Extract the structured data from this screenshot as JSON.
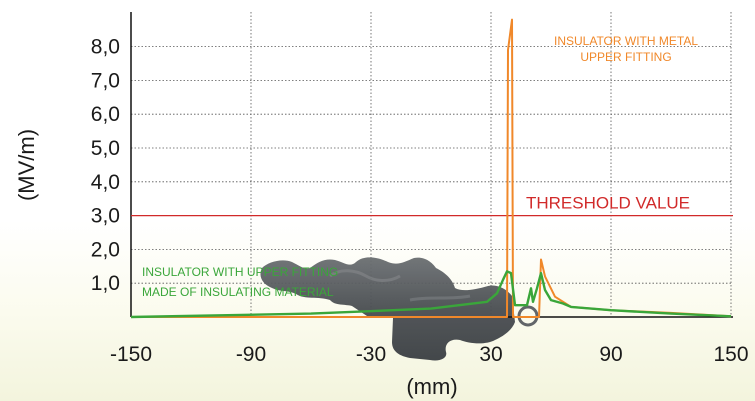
{
  "chart_data": {
    "type": "line",
    "xlabel": "(mm)",
    "ylabel": "(MV/m)",
    "xlim": [
      -150,
      150
    ],
    "ylim": [
      0,
      8.8
    ],
    "x_ticks": [
      -150,
      -90,
      -30,
      30,
      90,
      150
    ],
    "x_tick_labels": [
      "-150",
      "-90",
      "-30",
      "30",
      "90",
      "150"
    ],
    "y_ticks": [
      1,
      2,
      3,
      4,
      5,
      6,
      7,
      8
    ],
    "y_tick_labels": [
      "1,0",
      "2,0",
      "3,0",
      "4,0",
      "5,0",
      "6,0",
      "7,0",
      "8,0"
    ],
    "grid": true,
    "threshold": {
      "value": 3.0,
      "label": "THRESHOLD VALUE",
      "color": "#d12a2a"
    },
    "series": [
      {
        "name_lines": [
          "INSULATOR WITH METAL",
          "UPPER FITTING"
        ],
        "color": "#f0882a",
        "points": [
          [
            -150,
            0
          ],
          [
            38,
            0
          ],
          [
            38.5,
            7.9
          ],
          [
            40.5,
            8.8
          ],
          [
            41,
            0
          ],
          [
            54,
            0
          ],
          [
            55,
            1.7
          ],
          [
            57,
            1.2
          ],
          [
            62,
            0.6
          ],
          [
            70,
            0.3
          ],
          [
            90,
            0.2
          ],
          [
            120,
            0.12
          ],
          [
            150,
            0.02
          ]
        ]
      },
      {
        "name_lines": [
          "INSULATOR WITH UPPER FITTING",
          "MADE OF INSULATING MATERIAL"
        ],
        "color": "#3aa63a",
        "points": [
          [
            -150,
            0
          ],
          [
            -60,
            0.1
          ],
          [
            0,
            0.25
          ],
          [
            28,
            0.45
          ],
          [
            33,
            0.7
          ],
          [
            36,
            1.1
          ],
          [
            38,
            1.35
          ],
          [
            40,
            1.3
          ],
          [
            42,
            0.35
          ],
          [
            48,
            0.35
          ],
          [
            50,
            0.85
          ],
          [
            51,
            0.45
          ],
          [
            53,
            0.85
          ],
          [
            55,
            1.3
          ],
          [
            57,
            0.8
          ],
          [
            60,
            0.5
          ],
          [
            66,
            0.4
          ],
          [
            70,
            0.3
          ],
          [
            90,
            0.2
          ],
          [
            120,
            0.1
          ],
          [
            150,
            0.02
          ]
        ]
      }
    ]
  }
}
